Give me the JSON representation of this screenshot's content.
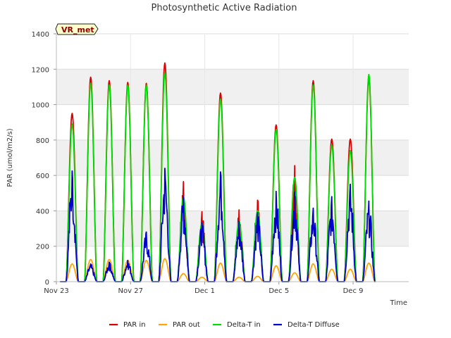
{
  "chart_data": {
    "type": "line",
    "title": "Photosynthetic Active Radiation",
    "xlabel": "Time",
    "ylabel": "PAR (umol/m2/s)",
    "ylim": [
      0,
      1400
    ],
    "yticks": [
      0,
      200,
      400,
      600,
      800,
      1000,
      1200,
      1400
    ],
    "xlim_days": [
      0,
      19
    ],
    "xticks": [
      {
        "day": 0,
        "label": "Nov 23"
      },
      {
        "day": 4,
        "label": "Nov 27"
      },
      {
        "day": 8,
        "label": "Dec 1"
      },
      {
        "day": 12,
        "label": "Dec 5"
      },
      {
        "day": 16,
        "label": "Dec 9"
      }
    ],
    "badge": "VR_met",
    "legend_position": "bottom",
    "shaded_bands": [
      [
        200,
        400
      ],
      [
        600,
        800
      ],
      [
        1000,
        1200
      ]
    ],
    "series": [
      {
        "name": "PAR in",
        "color": "#dd0000",
        "peaks": [
          {
            "d": 0.85,
            "v": 950
          },
          {
            "d": 1.85,
            "v": 1155
          },
          {
            "d": 2.85,
            "v": 1135
          },
          {
            "d": 3.85,
            "v": 1125
          },
          {
            "d": 4.85,
            "v": 1120
          },
          {
            "d": 5.85,
            "v": 1235
          },
          {
            "d": 6.85,
            "v": 565
          },
          {
            "d": 7.85,
            "v": 395
          },
          {
            "d": 8.85,
            "v": 1065
          },
          {
            "d": 9.85,
            "v": 405
          },
          {
            "d": 10.85,
            "v": 460
          },
          {
            "d": 11.85,
            "v": 885
          },
          {
            "d": 12.85,
            "v": 655
          },
          {
            "d": 13.85,
            "v": 1135
          },
          {
            "d": 14.85,
            "v": 805
          },
          {
            "d": 15.85,
            "v": 805
          },
          {
            "d": 16.85,
            "v": 1150
          }
        ]
      },
      {
        "name": "PAR out",
        "color": "#ffa500",
        "peaks": [
          {
            "d": 0.85,
            "v": 100
          },
          {
            "d": 1.85,
            "v": 125
          },
          {
            "d": 2.85,
            "v": 125
          },
          {
            "d": 3.85,
            "v": 120
          },
          {
            "d": 4.85,
            "v": 120
          },
          {
            "d": 5.85,
            "v": 130
          },
          {
            "d": 6.85,
            "v": 45
          },
          {
            "d": 7.85,
            "v": 25
          },
          {
            "d": 8.85,
            "v": 105
          },
          {
            "d": 9.85,
            "v": 25
          },
          {
            "d": 10.85,
            "v": 30
          },
          {
            "d": 11.85,
            "v": 90
          },
          {
            "d": 12.85,
            "v": 50
          },
          {
            "d": 13.85,
            "v": 100
          },
          {
            "d": 14.85,
            "v": 70
          },
          {
            "d": 15.85,
            "v": 70
          },
          {
            "d": 16.85,
            "v": 105
          }
        ]
      },
      {
        "name": "Delta-T in",
        "color": "#00dd00",
        "peaks": [
          {
            "d": 0.85,
            "v": 890
          },
          {
            "d": 1.85,
            "v": 1120
          },
          {
            "d": 2.85,
            "v": 1110
          },
          {
            "d": 3.85,
            "v": 1110
          },
          {
            "d": 4.85,
            "v": 1110
          },
          {
            "d": 5.85,
            "v": 1180
          },
          {
            "d": 6.85,
            "v": 480
          },
          {
            "d": 7.85,
            "v": 330
          },
          {
            "d": 8.85,
            "v": 1030
          },
          {
            "d": 9.85,
            "v": 340
          },
          {
            "d": 10.85,
            "v": 400
          },
          {
            "d": 11.85,
            "v": 860
          },
          {
            "d": 12.85,
            "v": 590
          },
          {
            "d": 13.85,
            "v": 1110
          },
          {
            "d": 14.85,
            "v": 770
          },
          {
            "d": 15.85,
            "v": 740
          },
          {
            "d": 16.85,
            "v": 1170
          }
        ]
      },
      {
        "name": "Delta-T Diffuse",
        "color": "#0000cc",
        "peaks": [
          {
            "d": 0.85,
            "v": 625
          },
          {
            "d": 1.85,
            "v": 100
          },
          {
            "d": 2.85,
            "v": 110
          },
          {
            "d": 3.85,
            "v": 120
          },
          {
            "d": 4.85,
            "v": 280
          },
          {
            "d": 5.85,
            "v": 640
          },
          {
            "d": 6.85,
            "v": 480
          },
          {
            "d": 7.85,
            "v": 330
          },
          {
            "d": 8.85,
            "v": 620
          },
          {
            "d": 9.85,
            "v": 340
          },
          {
            "d": 10.85,
            "v": 390
          },
          {
            "d": 11.85,
            "v": 510
          },
          {
            "d": 12.85,
            "v": 505
          },
          {
            "d": 13.85,
            "v": 415
          },
          {
            "d": 14.85,
            "v": 480
          },
          {
            "d": 15.85,
            "v": 550
          },
          {
            "d": 16.85,
            "v": 455
          }
        ]
      }
    ]
  }
}
